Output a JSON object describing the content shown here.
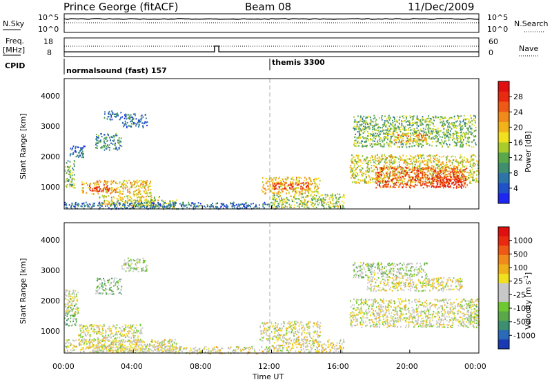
{
  "header": {
    "station": "Prince George (fitACF)",
    "beam": "Beam 08",
    "date": "11/Dec/2009"
  },
  "top_panels": {
    "nsky_label": "N.Sky",
    "nsearch_label": "N.Search",
    "freq_label_1": "Freq.",
    "freq_label_2": "[MHz]",
    "nave_label": "Nave",
    "cpid_label": "CPID",
    "left_ticks_nsky": [
      "10^5",
      "10^0"
    ],
    "right_ticks_nsearch": [
      "10^5",
      "10^0"
    ],
    "left_ticks_freq": [
      "18",
      "8"
    ],
    "right_ticks_nave": [
      "60",
      "0"
    ],
    "cpid_segments": [
      {
        "start_hour": 0,
        "end_hour": 12,
        "label": "normalsound (fast) 157"
      },
      {
        "start_hour": 12,
        "end_hour": 24,
        "label": "themis 3300"
      }
    ]
  },
  "power_panel": {
    "ylabel": "Slant Range [km]",
    "yticks": [
      "1000",
      "2000",
      "3000",
      "4000"
    ],
    "colorbar_label": "Power [dB]",
    "colorbar_ticks": [
      "4",
      "8",
      "12",
      "16",
      "20",
      "24",
      "28"
    ],
    "colorbar_colors": [
      "#1e27f0",
      "#1f52c8",
      "#2d74a8",
      "#3f8f6e",
      "#5aa84a",
      "#a8cc2a",
      "#f0e020",
      "#f2b31a",
      "#f08a1a",
      "#ee5a15",
      "#e82a10",
      "#e01010"
    ]
  },
  "velocity_panel": {
    "ylabel": "Slant Range [km]",
    "yticks": [
      "1000",
      "2000",
      "3000",
      "4000"
    ],
    "colorbar_label": "Velocity [m s",
    "colorbar_label_sup": "-1",
    "colorbar_label_end": "]",
    "colorbar_ticks": [
      "1000",
      "500",
      "100",
      "25",
      "-25",
      "-100",
      "-500",
      "-1000"
    ],
    "colorbar_colors": [
      "#1a3ab4",
      "#2a6ab8",
      "#3d8f70",
      "#5aa84a",
      "#6ec832",
      "#c8c8c8",
      "#c8c8c8",
      "#f0e020",
      "#f0b01a",
      "#f08a1a",
      "#ee5a15",
      "#e82a10",
      "#e01010"
    ]
  },
  "x_axis": {
    "label": "Time UT",
    "ticks": [
      "00:00",
      "04:00",
      "08:00",
      "12:00",
      "16:00",
      "20:00",
      "00:00"
    ]
  },
  "chart_data": {
    "type": "heatmap",
    "title": "Prince George (fitACF)",
    "subtitle": "Beam 08",
    "xlabel": "Time UT",
    "ylabel": "Slant Range [km]",
    "x_range_hours": [
      0,
      24
    ],
    "y_range_km": [
      180,
      4500
    ],
    "panels": [
      {
        "name": "Power",
        "colorbar": "Power [dB]",
        "color_range": [
          0,
          30
        ],
        "regions": [
          {
            "t0": 0.0,
            "t1": 0.6,
            "r0": 900,
            "r1": 1800,
            "level": 12
          },
          {
            "t0": 0.3,
            "t1": 1.2,
            "r0": 1900,
            "r1": 2300,
            "level": 6
          },
          {
            "t0": 1.0,
            "t1": 3.0,
            "r0": 700,
            "r1": 1150,
            "level": 20
          },
          {
            "t0": 1.4,
            "t1": 2.6,
            "r0": 800,
            "r1": 1000,
            "level": 28
          },
          {
            "t0": 3.0,
            "t1": 5.0,
            "r0": 650,
            "r1": 1150,
            "level": 18
          },
          {
            "t0": 2.0,
            "t1": 5.5,
            "r0": 300,
            "r1": 650,
            "level": 16
          },
          {
            "t0": 4.0,
            "t1": 6.5,
            "r0": 220,
            "r1": 500,
            "level": 14
          },
          {
            "t0": 1.8,
            "t1": 3.3,
            "r0": 2150,
            "r1": 2700,
            "level": 8
          },
          {
            "t0": 3.3,
            "t1": 4.8,
            "r0": 2900,
            "r1": 3350,
            "level": 6
          },
          {
            "t0": 2.3,
            "t1": 3.3,
            "r0": 3150,
            "r1": 3450,
            "level": 6
          },
          {
            "t0": 0.0,
            "t1": 12.5,
            "r0": 200,
            "r1": 420,
            "level": 6
          },
          {
            "t0": 11.4,
            "t1": 14.8,
            "r0": 700,
            "r1": 1250,
            "level": 18
          },
          {
            "t0": 12.0,
            "t1": 14.2,
            "r0": 850,
            "r1": 1100,
            "level": 26
          },
          {
            "t0": 12.0,
            "t1": 16.2,
            "r0": 220,
            "r1": 700,
            "level": 14
          },
          {
            "t0": 16.5,
            "t1": 24.0,
            "r0": 1050,
            "r1": 2000,
            "level": 16
          },
          {
            "t0": 18.0,
            "t1": 23.3,
            "r0": 900,
            "r1": 1600,
            "level": 24
          },
          {
            "t0": 21.2,
            "t1": 23.0,
            "r0": 900,
            "r1": 1300,
            "level": 28
          },
          {
            "t0": 16.7,
            "t1": 23.8,
            "r0": 2250,
            "r1": 3300,
            "level": 12
          },
          {
            "t0": 19.0,
            "t1": 21.0,
            "r0": 2400,
            "r1": 2700,
            "level": 20
          }
        ]
      },
      {
        "name": "Velocity",
        "colorbar": "Velocity [m s-1]",
        "color_range": [
          -1000,
          1000
        ],
        "regions": [
          {
            "t0": 0.0,
            "t1": 0.7,
            "r0": 1100,
            "r1": 1800,
            "level": -300
          },
          {
            "t0": 0.0,
            "t1": 0.8,
            "r0": 1500,
            "r1": 2300,
            "level": 0
          },
          {
            "t0": 0.8,
            "t1": 4.5,
            "r0": 550,
            "r1": 1150,
            "level": 0
          },
          {
            "t0": 0.0,
            "t1": 6.5,
            "r0": 220,
            "r1": 650,
            "level": 0
          },
          {
            "t0": 1.5,
            "t1": 6.0,
            "r0": 220,
            "r1": 500,
            "level": 60
          },
          {
            "t0": 6.0,
            "t1": 12.0,
            "r0": 180,
            "r1": 420,
            "level": 60
          },
          {
            "t0": 1.8,
            "t1": 3.3,
            "r0": 2150,
            "r1": 2700,
            "level": -300
          },
          {
            "t0": 3.3,
            "t1": 4.8,
            "r0": 2900,
            "r1": 3350,
            "level": -200
          },
          {
            "t0": 11.3,
            "t1": 14.8,
            "r0": 600,
            "r1": 1250,
            "level": 0
          },
          {
            "t0": 12.0,
            "t1": 16.2,
            "r0": 220,
            "r1": 650,
            "level": 40
          },
          {
            "t0": 16.5,
            "t1": 24.0,
            "r0": 1050,
            "r1": 2000,
            "level": 0
          },
          {
            "t0": 23.3,
            "t1": 24.0,
            "r0": 1200,
            "r1": 1800,
            "level": -150
          },
          {
            "t0": 16.7,
            "t1": 21.0,
            "r0": 2700,
            "r1": 3200,
            "level": -200
          },
          {
            "t0": 17.5,
            "t1": 23.0,
            "r0": 2250,
            "r1": 2700,
            "level": 40
          }
        ]
      }
    ],
    "nsky_level_log10": 4.2,
    "freq_mhz": [
      {
        "t0": 0.0,
        "t1": 8.7,
        "value": 10.2
      },
      {
        "t0": 8.7,
        "t1": 8.95,
        "value": 14.0
      },
      {
        "t0": 8.95,
        "t1": 24.0,
        "value": 10.2
      }
    ],
    "nave_level": 28
  }
}
